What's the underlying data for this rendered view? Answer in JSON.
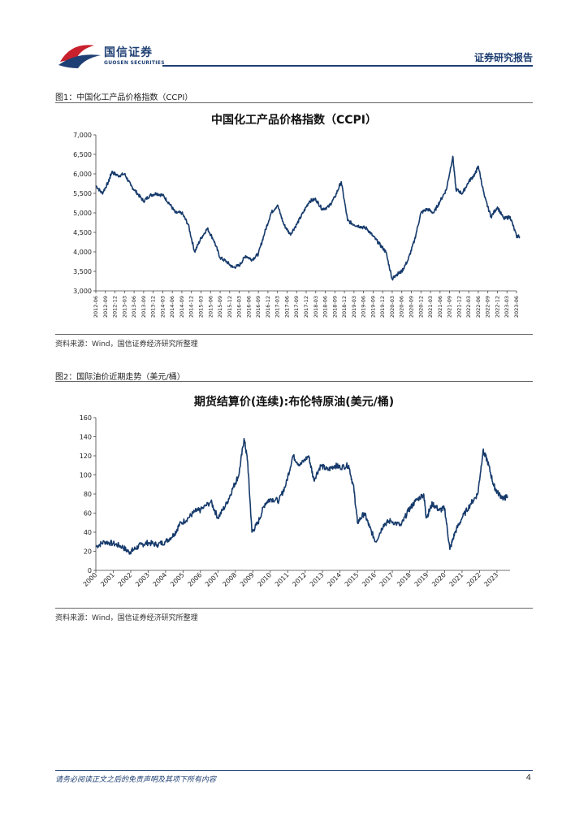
{
  "header": {
    "company_cn": "国信证券",
    "company_en": "GUOSEN SECURITIES",
    "report_type": "证券研究报告"
  },
  "figures": [
    {
      "caption": "图1：中国化工产品价格指数（CCPI）",
      "source": "资料来源：Wind，国信证券经济研究所整理",
      "chart_data": {
        "type": "line",
        "title": "中国化工产品价格指数（CCPI）",
        "ylim": [
          3000,
          7000
        ],
        "yticks": [
          "3,000",
          "3,500",
          "4,000",
          "4,500",
          "5,000",
          "5,500",
          "6,000",
          "6,500",
          "7,000"
        ],
        "x_ticks": [
          "2012-06",
          "2012-09",
          "2012-12",
          "2013-03",
          "2013-06",
          "2013-09",
          "2013-12",
          "2014-03",
          "2014-06",
          "2014-09",
          "2014-12",
          "2015-03",
          "2015-06",
          "2015-09",
          "2015-12",
          "2016-03",
          "2016-06",
          "2016-09",
          "2016-12",
          "2017-03",
          "2017-06",
          "2017-09",
          "2017-12",
          "2018-03",
          "2018-06",
          "2018-09",
          "2018-12",
          "2019-03",
          "2019-06",
          "2019-09",
          "2019-12",
          "2020-03",
          "2020-06",
          "2020-09",
          "2020-12",
          "2021-03",
          "2021-06",
          "2021-09",
          "2021-12",
          "2022-03",
          "2022-06",
          "2022-09",
          "2022-12",
          "2023-03",
          "2023-06"
        ],
        "series": [
          {
            "color": "#163a6b",
            "x": [
              "2012-06",
              "2012-08",
              "2012-10",
              "2012-11",
              "2013-01",
              "2013-03",
              "2013-05",
              "2013-07",
              "2013-09",
              "2013-11",
              "2014-01",
              "2014-03",
              "2014-05",
              "2014-07",
              "2014-09",
              "2014-11",
              "2015-01",
              "2015-03",
              "2015-05",
              "2015-07",
              "2015-09",
              "2015-11",
              "2016-01",
              "2016-03",
              "2016-05",
              "2016-07",
              "2016-09",
              "2016-11",
              "2017-01",
              "2017-03",
              "2017-05",
              "2017-07",
              "2017-09",
              "2017-11",
              "2018-01",
              "2018-03",
              "2018-05",
              "2018-07",
              "2018-09",
              "2018-11",
              "2019-01",
              "2019-03",
              "2019-05",
              "2019-07",
              "2019-09",
              "2019-11",
              "2020-01",
              "2020-03",
              "2020-04",
              "2020-06",
              "2020-08",
              "2020-10",
              "2020-12",
              "2021-02",
              "2021-04",
              "2021-06",
              "2021-08",
              "2021-10",
              "2021-11",
              "2022-01",
              "2022-03",
              "2022-05",
              "2022-06",
              "2022-08",
              "2022-10",
              "2022-12",
              "2023-02",
              "2023-04",
              "2023-06",
              "2023-07"
            ],
            "values": [
              5700,
              5500,
              5800,
              6050,
              5950,
              6000,
              5700,
              5500,
              5300,
              5450,
              5500,
              5450,
              5250,
              5000,
              5000,
              4700,
              4000,
              4350,
              4600,
              4300,
              3850,
              3750,
              3600,
              3650,
              3900,
              3800,
              3950,
              4500,
              5000,
              5200,
              4700,
              4450,
              4700,
              5000,
              5300,
              5350,
              5100,
              5150,
              5400,
              5800,
              4800,
              4700,
              4650,
              4600,
              4400,
              4200,
              4000,
              3300,
              3400,
              3500,
              3800,
              4300,
              5000,
              5100,
              5000,
              5300,
              5600,
              6450,
              5600,
              5500,
              5800,
              6000,
              6200,
              5400,
              4900,
              5150,
              4850,
              4900,
              4400,
              4400
            ]
          }
        ]
      }
    },
    {
      "caption": "图2：国际油价近期走势（美元/桶）",
      "source": "资料来源：Wind，国信证券经济研究所整理",
      "chart_data": {
        "type": "line",
        "title": "期货结算价(连续):布伦特原油(美元/桶)",
        "ylim": [
          0,
          160
        ],
        "yticks": [
          "0",
          "20",
          "40",
          "60",
          "80",
          "100",
          "120",
          "140",
          "160"
        ],
        "x_ticks": [
          "2000",
          "2001",
          "2002",
          "2003",
          "2004",
          "2005",
          "2006",
          "2007",
          "2008",
          "2009",
          "2010",
          "2011",
          "2012",
          "2013",
          "2014",
          "2015",
          "2016",
          "2017",
          "2018",
          "2019",
          "2020",
          "2021",
          "2022",
          "2023"
        ],
        "series": [
          {
            "color": "#163a6b",
            "x": [
              2000.0,
              2000.5,
              2001.0,
              2001.5,
              2001.9,
              2002.2,
              2002.6,
              2003.0,
              2003.5,
              2004.0,
              2004.5,
              2004.8,
              2005.3,
              2005.7,
              2006.0,
              2006.6,
              2007.0,
              2007.5,
              2007.9,
              2008.2,
              2008.5,
              2008.7,
              2008.95,
              2009.3,
              2009.7,
              2010.0,
              2010.5,
              2010.9,
              2011.3,
              2011.7,
              2012.2,
              2012.5,
              2012.9,
              2013.3,
              2013.7,
              2014.0,
              2014.5,
              2014.8,
              2015.0,
              2015.4,
              2015.7,
              2016.05,
              2016.5,
              2016.9,
              2017.5,
              2017.9,
              2018.3,
              2018.8,
              2018.95,
              2019.3,
              2019.7,
              2020.0,
              2020.3,
              2020.6,
              2021.0,
              2021.5,
              2021.9,
              2022.2,
              2022.45,
              2022.8,
              2023.0,
              2023.4,
              2023.6
            ],
            "values": [
              25,
              30,
              28,
              25,
              19,
              22,
              27,
              29,
              27,
              30,
              38,
              48,
              55,
              62,
              63,
              72,
              55,
              70,
              88,
              100,
              138,
              115,
              40,
              50,
              70,
              75,
              73,
              90,
              120,
              110,
              120,
              95,
              110,
              105,
              110,
              108,
              110,
              85,
              50,
              60,
              45,
              30,
              48,
              52,
              47,
              62,
              72,
              80,
              55,
              70,
              63,
              65,
              22,
              40,
              55,
              70,
              80,
              125,
              115,
              90,
              82,
              75,
              78
            ]
          }
        ]
      }
    }
  ],
  "footer": {
    "disclaimer": "请务必阅读正文之后的免责声明及其项下所有内容",
    "page_number": "4"
  }
}
